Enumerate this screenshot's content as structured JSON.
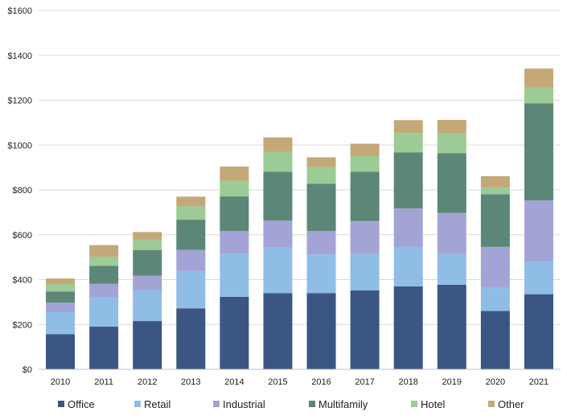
{
  "chart_data": {
    "type": "bar",
    "stacked": true,
    "title": "",
    "xlabel": "",
    "ylabel": "",
    "ylim": [
      0,
      1600
    ],
    "y_ticks": [
      0,
      200,
      400,
      600,
      800,
      1000,
      1200,
      1400,
      1600
    ],
    "y_tick_labels": [
      "$0",
      "$200",
      "$400",
      "$600",
      "$800",
      "$1000",
      "$1200",
      "$1400",
      "$1600"
    ],
    "grid": true,
    "legend_position": "bottom",
    "categories": [
      "2010",
      "2011",
      "2012",
      "2013",
      "2014",
      "2015",
      "2016",
      "2017",
      "2018",
      "2019",
      "2020",
      "2021"
    ],
    "series": [
      {
        "name": "Office",
        "color": "#3b5683",
        "values": [
          157,
          190,
          215,
          272,
          323,
          340,
          340,
          352,
          370,
          377,
          260,
          335
        ]
      },
      {
        "name": "Retail",
        "color": "#8fbde6",
        "values": [
          98,
          130,
          137,
          167,
          193,
          203,
          172,
          162,
          177,
          137,
          103,
          145
        ]
      },
      {
        "name": "Industrial",
        "color": "#a3a3d6",
        "values": [
          42,
          62,
          65,
          93,
          100,
          120,
          105,
          147,
          170,
          183,
          183,
          273
        ]
      },
      {
        "name": "Multifamily",
        "color": "#5c8778",
        "values": [
          50,
          80,
          115,
          135,
          155,
          218,
          210,
          220,
          250,
          267,
          235,
          433
        ]
      },
      {
        "name": "Hotel",
        "color": "#9ccb95",
        "values": [
          33,
          40,
          45,
          60,
          70,
          88,
          75,
          70,
          87,
          88,
          30,
          70
        ]
      },
      {
        "name": "Other",
        "color": "#c4a878",
        "values": [
          25,
          52,
          35,
          43,
          63,
          65,
          43,
          55,
          57,
          60,
          50,
          85
        ]
      }
    ]
  }
}
